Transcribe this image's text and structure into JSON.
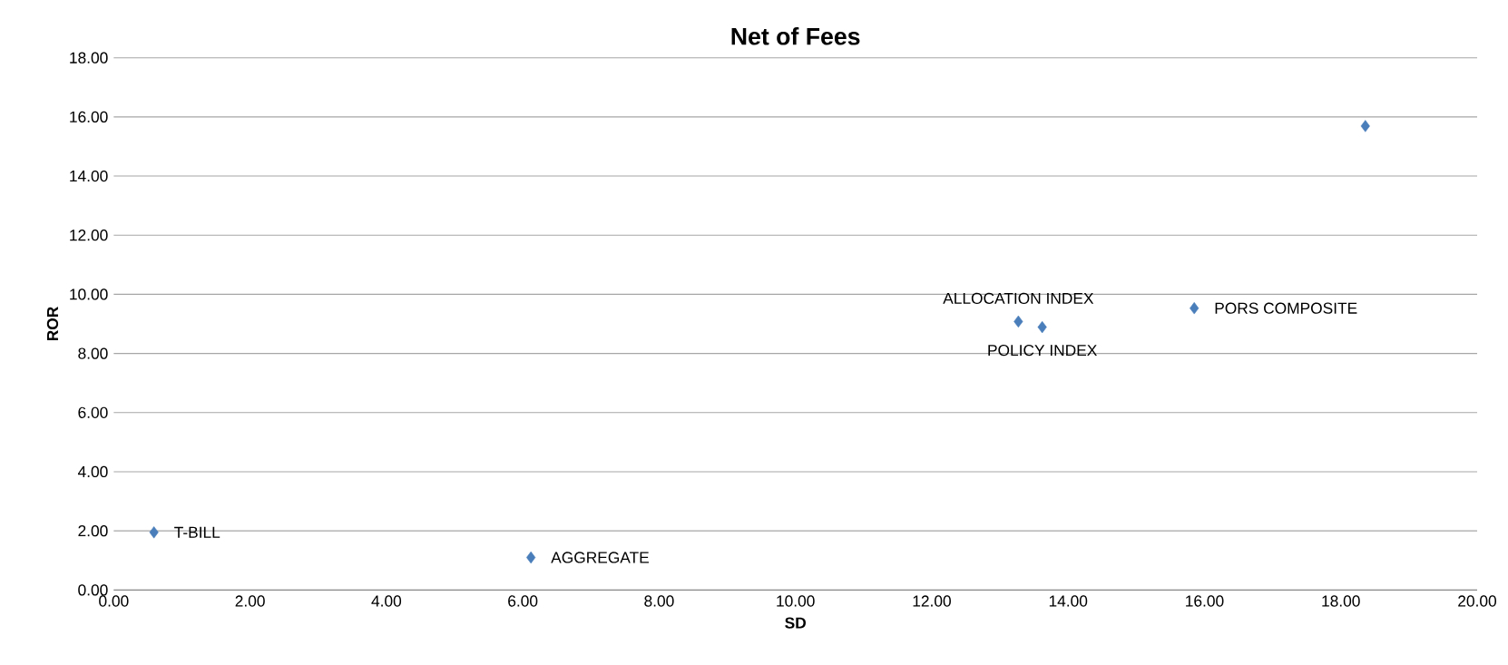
{
  "chart_data": {
    "type": "scatter",
    "title": "Net of Fees",
    "xlabel": "SD",
    "ylabel": "ROR",
    "series": [
      {
        "color": "#4a7ebb",
        "x": [
          0.59,
          6.12,
          13.27,
          13.62,
          15.85,
          18.36
        ],
        "values": [
          1.95,
          1.1,
          9.08,
          8.89,
          9.53,
          15.69
        ]
      }
    ],
    "marker": "diamond",
    "xlim": [
      0,
      20
    ],
    "ylim": [
      0,
      18
    ],
    "xticks": [
      {
        "value": 0,
        "label": "0.00"
      },
      {
        "value": 2,
        "label": "2.00"
      },
      {
        "value": 4,
        "label": "4.00"
      },
      {
        "value": 6,
        "label": "6.00"
      },
      {
        "value": 8,
        "label": "8.00"
      },
      {
        "value": 10,
        "label": "10.00"
      },
      {
        "value": 12,
        "label": "12.00"
      },
      {
        "value": 14,
        "label": "14.00"
      },
      {
        "value": 16,
        "label": "16.00"
      },
      {
        "value": 18,
        "label": "18.00"
      },
      {
        "value": 20,
        "label": "20.00"
      }
    ],
    "yticks": [
      {
        "value": 0,
        "label": "0.00"
      },
      {
        "value": 2,
        "label": "2.00"
      },
      {
        "value": 4,
        "label": "4.00"
      },
      {
        "value": 6,
        "label": "6.00"
      },
      {
        "value": 8,
        "label": "8.00"
      },
      {
        "value": 10,
        "label": "10.00"
      },
      {
        "value": 12,
        "label": "12.00"
      },
      {
        "value": 14,
        "label": "14.00"
      },
      {
        "value": 16,
        "label": "16.00"
      },
      {
        "value": 18,
        "label": "18.00"
      }
    ],
    "grid": "y",
    "annotations": [
      {
        "text": "T-BILL",
        "x": 0.59,
        "y": 1.95
      },
      {
        "text": "AGGREGATE",
        "x": 6.12,
        "y": 1.1
      },
      {
        "text": "ALLOCATION INDEX",
        "x": 13.27,
        "y": 9.08
      },
      {
        "text": "POLICY INDEX",
        "x": 13.62,
        "y": 8.89
      },
      {
        "text": "PORS COMPOSITE",
        "x": 15.85,
        "y": 9.53
      }
    ]
  }
}
